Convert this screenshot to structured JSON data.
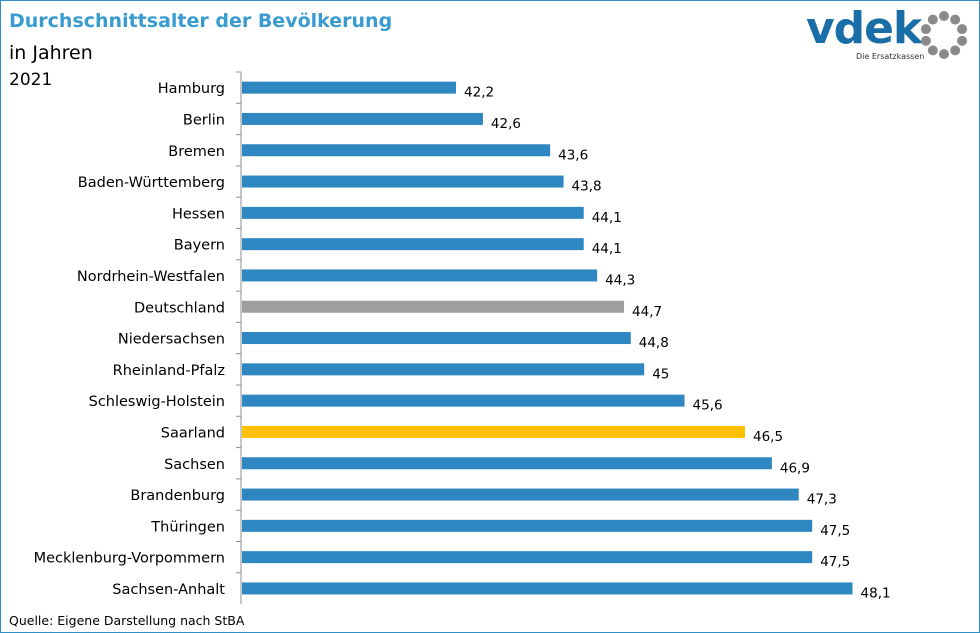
{
  "header": {
    "title": "Durchschnittsalter der Bevölkerung",
    "subtitle": "in Jahren",
    "year": "2021"
  },
  "logo": {
    "text": "vdek",
    "tagline": "Die Ersatzkassen",
    "ring_icon": "dotted-ring-icon",
    "color": "#1a6ea8"
  },
  "footer": {
    "source": "Quelle: Eigene Darstellung nach StBA"
  },
  "colors": {
    "default": "#2e87c0",
    "national": "#9e9e9e",
    "highlight": "#ffc000",
    "axis": "#8f8f8f"
  },
  "chart_data": {
    "type": "bar",
    "orientation": "horizontal",
    "title": "Durchschnittsalter der Bevölkerung",
    "subtitle": "in Jahren",
    "xlim": [
      39,
      49
    ],
    "categories": [
      "Hamburg",
      "Berlin",
      "Bremen",
      "Baden-Württemberg",
      "Hessen",
      "Bayern",
      "Nordrhein-Westfalen",
      "Deutschland",
      "Niedersachsen",
      "Rheinland-Pfalz",
      "Schleswig-Holstein",
      "Saarland",
      "Sachsen",
      "Brandenburg",
      "Thüringen",
      "Mecklenburg-Vorpommern",
      "Sachsen-Anhalt"
    ],
    "values": [
      42.2,
      42.6,
      43.6,
      43.8,
      44.1,
      44.1,
      44.3,
      44.7,
      44.8,
      45,
      45.6,
      46.5,
      46.9,
      47.3,
      47.5,
      47.5,
      48.1
    ],
    "value_labels": [
      "42,2",
      "42,6",
      "43,6",
      "43,8",
      "44,1",
      "44,1",
      "44,3",
      "44,7",
      "44,8",
      "45",
      "45,6",
      "46,5",
      "46,9",
      "47,3",
      "47,5",
      "47,5",
      "48,1"
    ],
    "bar_colors": [
      "default",
      "default",
      "default",
      "default",
      "default",
      "default",
      "default",
      "national",
      "default",
      "default",
      "default",
      "highlight",
      "default",
      "default",
      "default",
      "default",
      "default"
    ],
    "grid": false,
    "legend": "none"
  }
}
